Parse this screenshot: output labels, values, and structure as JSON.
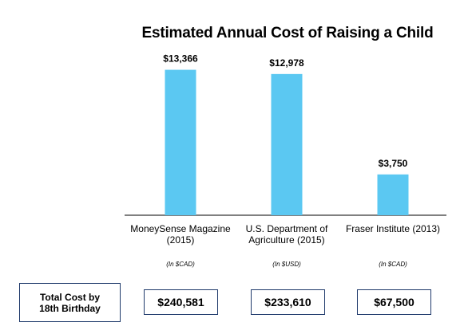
{
  "chart_data": {
    "type": "bar",
    "title": "Estimated Annual Cost of Raising a Child",
    "categories": [
      [
        "MoneySense Magazine",
        "(2015)"
      ],
      [
        "U.S. Department of",
        "Agriculture (2015)"
      ],
      [
        "Fraser Institute (2013)"
      ]
    ],
    "values": [
      13366,
      12978,
      3750
    ],
    "data_labels": [
      "$13,366",
      "$12,978",
      "$3,750"
    ],
    "currency_notes": [
      "(In $CAD)",
      "(In $USD)",
      "(In $CAD)"
    ],
    "bar_color": "#5bc8f2",
    "grid": false,
    "legend": "none",
    "ylim": [
      0,
      15000
    ]
  },
  "total_cost": {
    "label": [
      "Total Cost by",
      "18th Birthday"
    ],
    "values": [
      "$240,581",
      "$233,610",
      "$67,500"
    ],
    "border_color": "#1f3a6b"
  }
}
